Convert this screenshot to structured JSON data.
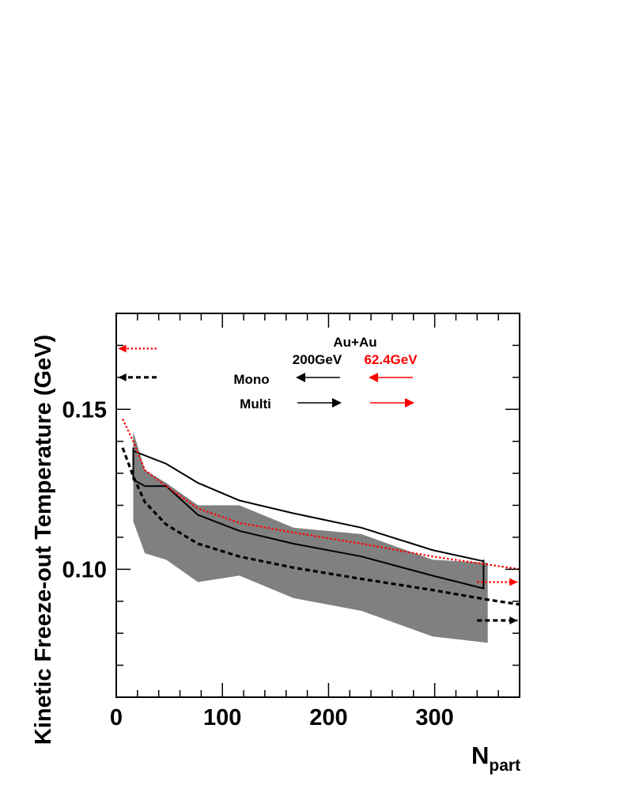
{
  "chart_data": {
    "type": "line",
    "title": "",
    "xlabel_main": "N",
    "xlabel_sub": "part",
    "ylabel": "Kinetic Freeze-out Temperature (GeV)",
    "xlim": [
      0,
      380
    ],
    "ylim": [
      0.06,
      0.18
    ],
    "x_ticks": [
      0,
      100,
      200,
      300
    ],
    "x_tick_labels": [
      "0",
      "100",
      "200",
      "300"
    ],
    "y_ticks": [
      0.1,
      0.15
    ],
    "y_tick_labels": [
      "0.10",
      "0.15"
    ],
    "legend": {
      "system": "Au+Au",
      "energy_200": "200GeV",
      "energy_62": "62.4GeV",
      "mono_label": "Mono",
      "multi_label": "Multi"
    },
    "colors": {
      "black": "#000000",
      "red": "#ff0000",
      "band": "#808080"
    },
    "series": [
      {
        "name": "200GeV band",
        "style": "band",
        "upper": [
          [
            16,
            0.143
          ],
          [
            27,
            0.131
          ],
          [
            47,
            0.127
          ],
          [
            77,
            0.12
          ],
          [
            116,
            0.12
          ],
          [
            167,
            0.113
          ],
          [
            231,
            0.111
          ],
          [
            298,
            0.103
          ],
          [
            350,
            0.102
          ]
        ],
        "lower": [
          [
            16,
            0.115
          ],
          [
            27,
            0.105
          ],
          [
            47,
            0.103
          ],
          [
            77,
            0.096
          ],
          [
            116,
            0.098
          ],
          [
            167,
            0.091
          ],
          [
            231,
            0.087
          ],
          [
            298,
            0.079
          ],
          [
            350,
            0.077
          ]
        ]
      },
      {
        "name": "200GeV data (solid)",
        "style": "solid",
        "points": [
          [
            16,
            0.138
          ],
          [
            16,
            0.128
          ],
          [
            27,
            0.126
          ],
          [
            47,
            0.126
          ],
          [
            77,
            0.117
          ],
          [
            116,
            0.112
          ],
          [
            167,
            0.108
          ],
          [
            231,
            0.104
          ],
          [
            298,
            0.098
          ],
          [
            346,
            0.094
          ],
          [
            346,
            0.103
          ]
        ]
      },
      {
        "name": "Multi 200GeV (solid upper)",
        "style": "solid",
        "points": [
          [
            16,
            0.137
          ],
          [
            47,
            0.133
          ],
          [
            77,
            0.127
          ],
          [
            116,
            0.1215
          ],
          [
            167,
            0.1175
          ],
          [
            231,
            0.113
          ],
          [
            298,
            0.106
          ],
          [
            346,
            0.1025
          ]
        ]
      },
      {
        "name": "Mono 200GeV (dashed)",
        "style": "dashed",
        "points": [
          [
            6,
            0.138
          ],
          [
            16,
            0.129
          ],
          [
            27,
            0.121
          ],
          [
            47,
            0.114
          ],
          [
            77,
            0.108
          ],
          [
            116,
            0.104
          ],
          [
            167,
            0.1005
          ],
          [
            231,
            0.097
          ],
          [
            298,
            0.0935
          ],
          [
            350,
            0.0905
          ],
          [
            380,
            0.089
          ]
        ]
      },
      {
        "name": "62.4GeV (dotted red)",
        "style": "dotted-red",
        "points": [
          [
            6,
            0.147
          ],
          [
            16,
            0.14
          ],
          [
            27,
            0.131
          ],
          [
            47,
            0.126
          ],
          [
            77,
            0.119
          ],
          [
            116,
            0.1145
          ],
          [
            167,
            0.1115
          ],
          [
            231,
            0.108
          ],
          [
            298,
            0.104
          ],
          [
            350,
            0.1015
          ],
          [
            380,
            0.1
          ]
        ]
      }
    ],
    "arrows": [
      {
        "name": "mono-62-y-arrow",
        "y": 0.169,
        "x_from": 38,
        "x_to": 2,
        "color": "red",
        "dash": "dotted"
      },
      {
        "name": "mono-200-y-arrow",
        "y": 0.16,
        "x_from": 38,
        "x_to": 2,
        "color": "black",
        "dash": "dashed"
      },
      {
        "name": "multi-62-y-arrow",
        "y": 0.096,
        "x_from": 340,
        "x_to": 378,
        "color": "red",
        "dash": "dotted"
      },
      {
        "name": "multi-200-y-arrow",
        "y": 0.084,
        "x_from": 340,
        "x_to": 378,
        "color": "black",
        "dash": "dashed"
      }
    ]
  }
}
